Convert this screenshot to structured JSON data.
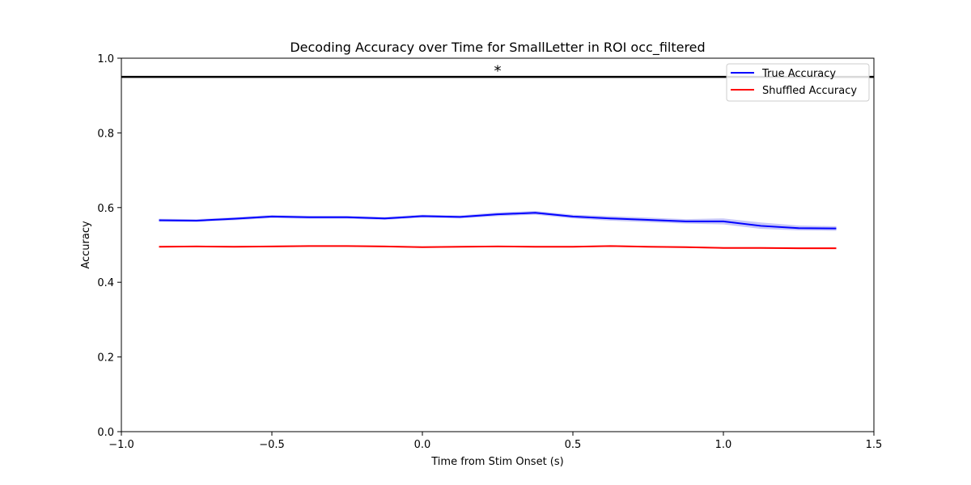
{
  "chart_data": {
    "type": "line",
    "title": "Decoding Accuracy over Time for SmallLetter in ROI occ_filtered",
    "xlabel": "Time from Stim Onset (s)",
    "ylabel": "Accuracy",
    "xlim": [
      -1.0,
      1.5
    ],
    "ylim": [
      0.0,
      1.0
    ],
    "xticks": [
      -1.0,
      -0.5,
      0.0,
      0.5,
      1.0,
      1.5
    ],
    "xtick_labels": [
      "−1.0",
      "−0.5",
      "0.0",
      "0.5",
      "1.0",
      "1.5"
    ],
    "yticks": [
      0.0,
      0.2,
      0.4,
      0.6,
      0.8,
      1.0
    ],
    "ytick_labels": [
      "0.0",
      "0.2",
      "0.4",
      "0.6",
      "0.8",
      "1.0"
    ],
    "grid": false,
    "legend_position": "upper-right",
    "x": [
      -0.875,
      -0.75,
      -0.625,
      -0.5,
      -0.375,
      -0.25,
      -0.125,
      0.0,
      0.125,
      0.25,
      0.375,
      0.5,
      0.625,
      0.75,
      0.875,
      1.0,
      1.125,
      1.25,
      1.375
    ],
    "series": [
      {
        "name": "True Accuracy",
        "color": "#0000ff",
        "values": [
          0.566,
          0.565,
          0.57,
          0.576,
          0.574,
          0.574,
          0.571,
          0.577,
          0.575,
          0.582,
          0.586,
          0.576,
          0.571,
          0.567,
          0.563,
          0.563,
          0.551,
          0.545,
          0.544
        ],
        "band_lower": [
          0.562,
          0.562,
          0.566,
          0.572,
          0.57,
          0.57,
          0.567,
          0.573,
          0.571,
          0.577,
          0.581,
          0.571,
          0.565,
          0.561,
          0.557,
          0.555,
          0.543,
          0.539,
          0.538
        ],
        "band_upper": [
          0.57,
          0.569,
          0.574,
          0.58,
          0.578,
          0.578,
          0.575,
          0.581,
          0.579,
          0.587,
          0.591,
          0.581,
          0.577,
          0.573,
          0.569,
          0.571,
          0.56,
          0.552,
          0.55
        ],
        "band_color": "#8080f0"
      },
      {
        "name": "Shuffled Accuracy",
        "color": "#ff0000",
        "values": [
          0.495,
          0.496,
          0.495,
          0.496,
          0.497,
          0.497,
          0.496,
          0.494,
          0.495,
          0.496,
          0.495,
          0.495,
          0.497,
          0.495,
          0.494,
          0.492,
          0.492,
          0.491,
          0.491
        ],
        "band_lower": [
          0.493,
          0.494,
          0.493,
          0.494,
          0.495,
          0.495,
          0.494,
          0.492,
          0.493,
          0.494,
          0.493,
          0.493,
          0.495,
          0.493,
          0.492,
          0.49,
          0.49,
          0.489,
          0.489
        ],
        "band_upper": [
          0.497,
          0.498,
          0.497,
          0.498,
          0.499,
          0.499,
          0.498,
          0.496,
          0.497,
          0.498,
          0.497,
          0.497,
          0.499,
          0.497,
          0.496,
          0.494,
          0.494,
          0.493,
          0.493
        ],
        "band_color": "#f08080"
      }
    ],
    "reference_line": {
      "y": 0.95,
      "color": "#000000"
    },
    "annotations": [
      {
        "text": "*",
        "x": 0.25,
        "y": 0.975
      }
    ]
  }
}
